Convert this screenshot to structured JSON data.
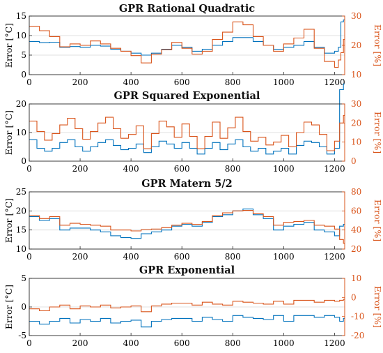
{
  "colors": {
    "left_axis": "#0072BD",
    "right_axis": "#D95319",
    "text_left": "#000000",
    "text_right": "#D95319",
    "grid": "#d9d9d9",
    "frame": "#262626"
  },
  "chart_data": [
    {
      "type": "line",
      "title": "GPR Rational Quadratic",
      "xlabel": "",
      "ylabel_left": "Error [°C]",
      "ylabel_right": "Error [%]",
      "xlim": [
        0,
        1240
      ],
      "ylim_left": [
        0,
        15
      ],
      "ylim_right": [
        10,
        30
      ],
      "x_ticks": [
        "0",
        "200",
        "400",
        "600",
        "800",
        "1000",
        "1200"
      ],
      "y_ticks_left": [
        "0",
        "5",
        "10",
        "15"
      ],
      "y_ticks_right": [
        "10",
        "20",
        "30"
      ],
      "grid": "horizontal",
      "series": [
        {
          "axis": "left",
          "color": "#0072BD",
          "x": [
            0,
            40,
            80,
            120,
            160,
            200,
            240,
            280,
            320,
            360,
            400,
            440,
            480,
            520,
            560,
            600,
            640,
            680,
            720,
            760,
            800,
            840,
            880,
            920,
            960,
            1000,
            1040,
            1080,
            1120,
            1160,
            1200,
            1215,
            1225,
            1235
          ],
          "y": [
            8.5,
            8.2,
            8.3,
            7.0,
            7.2,
            7.0,
            7.5,
            7.3,
            6.5,
            6.0,
            5.5,
            5.0,
            5.5,
            6.5,
            7.5,
            7.0,
            6.0,
            6.5,
            7.5,
            8.5,
            9.5,
            9.5,
            8.5,
            7.5,
            6.5,
            7.0,
            7.5,
            8.5,
            7.0,
            5.5,
            6.0,
            7.0,
            13.5,
            14.0
          ]
        },
        {
          "axis": "right",
          "color": "#D95319",
          "x": [
            0,
            40,
            80,
            120,
            160,
            200,
            240,
            280,
            320,
            360,
            400,
            440,
            480,
            520,
            560,
            600,
            640,
            680,
            720,
            760,
            800,
            840,
            880,
            920,
            960,
            1000,
            1040,
            1080,
            1120,
            1160,
            1200,
            1215,
            1225,
            1235
          ],
          "y": [
            26.5,
            25.0,
            23.0,
            19.5,
            20.5,
            20.0,
            21.5,
            20.5,
            19.0,
            18.0,
            16.5,
            14.0,
            17.0,
            18.5,
            21.0,
            19.0,
            17.0,
            18.0,
            22.0,
            24.5,
            28.0,
            27.0,
            23.0,
            20.0,
            18.0,
            20.5,
            22.5,
            25.5,
            19.0,
            14.5,
            12.5,
            15.0,
            17.5,
            22.0
          ]
        }
      ]
    },
    {
      "type": "line",
      "title": "GPR Squared Exponential",
      "xlabel": "",
      "ylabel_left": "Error [°C]",
      "ylabel_right": "Error [%]",
      "xlim": [
        0,
        1240
      ],
      "ylim_left": [
        0,
        20
      ],
      "ylim_right": [
        0,
        30
      ],
      "x_ticks": [
        "0",
        "200",
        "400",
        "600",
        "800",
        "1000",
        "1200"
      ],
      "y_ticks_left": [
        "0",
        "10",
        "20"
      ],
      "y_ticks_right": [
        "0",
        "10",
        "20",
        "30"
      ],
      "grid": "horizontal",
      "series": [
        {
          "axis": "left",
          "color": "#0072BD",
          "x": [
            0,
            30,
            60,
            90,
            120,
            150,
            180,
            210,
            240,
            270,
            300,
            330,
            360,
            390,
            420,
            450,
            480,
            510,
            540,
            570,
            600,
            630,
            660,
            690,
            720,
            750,
            780,
            810,
            840,
            870,
            900,
            930,
            960,
            990,
            1020,
            1050,
            1080,
            1110,
            1140,
            1170,
            1200,
            1220,
            1235
          ],
          "y": [
            7.5,
            4.5,
            3.5,
            4.5,
            6.5,
            7.5,
            5.0,
            3.5,
            5.0,
            6.5,
            7.5,
            5.5,
            4.0,
            4.5,
            6.0,
            3.0,
            5.0,
            7.0,
            6.0,
            4.5,
            6.5,
            4.5,
            2.5,
            4.5,
            6.5,
            4.0,
            6.0,
            7.5,
            5.0,
            3.5,
            4.5,
            2.5,
            3.5,
            4.5,
            2.5,
            5.5,
            7.0,
            6.5,
            5.0,
            2.5,
            4.5,
            25.0,
            27.0
          ]
        },
        {
          "axis": "right",
          "color": "#D95319",
          "x": [
            0,
            30,
            60,
            90,
            120,
            150,
            180,
            210,
            240,
            270,
            300,
            330,
            360,
            390,
            420,
            450,
            480,
            510,
            540,
            570,
            600,
            630,
            660,
            690,
            720,
            750,
            780,
            810,
            840,
            870,
            900,
            930,
            960,
            990,
            1020,
            1050,
            1080,
            1110,
            1140,
            1170,
            1200,
            1220,
            1235
          ],
          "y": [
            21.0,
            15.5,
            11.0,
            14.5,
            19.0,
            22.5,
            17.0,
            11.5,
            15.5,
            20.0,
            23.0,
            17.0,
            12.0,
            14.0,
            18.5,
            6.5,
            14.5,
            21.0,
            18.0,
            12.5,
            19.5,
            13.0,
            6.5,
            13.0,
            20.5,
            12.0,
            17.5,
            23.0,
            15.5,
            10.5,
            12.5,
            8.5,
            10.0,
            13.5,
            7.5,
            15.0,
            20.5,
            19.0,
            14.0,
            5.5,
            10.5,
            20.0,
            24.0
          ]
        }
      ]
    },
    {
      "type": "line",
      "title": "GPR Matern 5/2",
      "xlabel": "",
      "ylabel_left": "Error [°C]",
      "ylabel_right": "Error [%]",
      "xlim": [
        0,
        1240
      ],
      "ylim_left": [
        10,
        25
      ],
      "ylim_right": [
        20,
        80
      ],
      "x_ticks": [
        "0",
        "200",
        "400",
        "600",
        "800",
        "1000",
        "1200"
      ],
      "y_ticks_left": [
        "10",
        "15",
        "20",
        "25"
      ],
      "y_ticks_right": [
        "20",
        "40",
        "60",
        "80"
      ],
      "grid": "horizontal",
      "series": [
        {
          "axis": "left",
          "color": "#0072BD",
          "x": [
            0,
            40,
            80,
            120,
            160,
            200,
            240,
            280,
            320,
            360,
            400,
            440,
            480,
            520,
            560,
            600,
            640,
            680,
            720,
            760,
            800,
            840,
            880,
            920,
            960,
            1000,
            1040,
            1080,
            1120,
            1160,
            1200,
            1220,
            1235
          ],
          "y": [
            18.5,
            17.5,
            18.0,
            15.0,
            15.5,
            15.5,
            15.0,
            14.5,
            13.5,
            13.0,
            12.8,
            14.0,
            14.5,
            15.0,
            16.0,
            16.5,
            16.0,
            17.0,
            18.5,
            19.0,
            20.0,
            20.5,
            19.0,
            18.0,
            15.0,
            16.0,
            16.5,
            17.0,
            15.0,
            14.5,
            13.5,
            16.0,
            16.5
          ]
        },
        {
          "axis": "right",
          "color": "#D95319",
          "x": [
            0,
            40,
            80,
            120,
            160,
            200,
            240,
            280,
            320,
            360,
            400,
            440,
            480,
            520,
            560,
            600,
            640,
            680,
            720,
            760,
            800,
            840,
            880,
            920,
            960,
            1000,
            1040,
            1080,
            1120,
            1160,
            1200,
            1220,
            1235
          ],
          "y": [
            55.0,
            52.0,
            54.0,
            45.0,
            47.0,
            46.0,
            45.0,
            44.0,
            40.0,
            40.0,
            39.0,
            40.5,
            41.0,
            42.5,
            45.0,
            47.0,
            46.0,
            49.0,
            55.0,
            58.0,
            60.0,
            60.5,
            57.0,
            54.0,
            45.0,
            48.0,
            49.0,
            50.0,
            45.0,
            44.0,
            41.0,
            30.0,
            26.0
          ]
        }
      ]
    },
    {
      "type": "line",
      "title": "GPR Exponential",
      "xlabel": "",
      "ylabel_left": "Error [°C]",
      "ylabel_right": "Error [%]",
      "xlim": [
        0,
        1240
      ],
      "ylim_left": [
        -5,
        5
      ],
      "ylim_right": [
        -20,
        10
      ],
      "x_ticks": [
        "0",
        "200",
        "400",
        "600",
        "800",
        "1000",
        "1200"
      ],
      "y_ticks_left": [
        "-5",
        "0",
        "5"
      ],
      "y_ticks_right": [
        "-20",
        "-10",
        "0",
        "10"
      ],
      "grid": "horizontal",
      "series": [
        {
          "axis": "left",
          "color": "#0072BD",
          "x": [
            0,
            40,
            80,
            120,
            160,
            200,
            240,
            280,
            320,
            360,
            400,
            440,
            480,
            520,
            560,
            600,
            640,
            680,
            720,
            760,
            800,
            840,
            880,
            920,
            960,
            1000,
            1040,
            1080,
            1120,
            1160,
            1200,
            1220,
            1235
          ],
          "y": [
            -2.5,
            -3.0,
            -2.5,
            -2.0,
            -2.8,
            -2.2,
            -2.5,
            -2.0,
            -2.8,
            -2.5,
            -2.3,
            -3.5,
            -2.5,
            -2.2,
            -2.0,
            -2.0,
            -2.5,
            -1.8,
            -2.2,
            -2.5,
            -1.5,
            -1.8,
            -2.0,
            -2.2,
            -1.5,
            -2.5,
            -1.5,
            -1.5,
            -1.8,
            -1.5,
            -1.8,
            -2.5,
            -2.0
          ]
        },
        {
          "axis": "right",
          "color": "#D95319",
          "x": [
            0,
            40,
            80,
            120,
            160,
            200,
            240,
            280,
            320,
            360,
            400,
            440,
            480,
            520,
            560,
            600,
            640,
            680,
            720,
            760,
            800,
            840,
            880,
            920,
            960,
            1000,
            1040,
            1080,
            1120,
            1160,
            1200,
            1220,
            1235
          ],
          "y": [
            -6.0,
            -7.0,
            -5.0,
            -4.0,
            -6.0,
            -4.5,
            -5.0,
            -4.0,
            -5.5,
            -5.0,
            -4.5,
            -7.5,
            -4.5,
            -3.5,
            -3.0,
            -3.0,
            -4.0,
            -2.5,
            -3.5,
            -4.0,
            -2.0,
            -2.5,
            -3.0,
            -3.5,
            -2.0,
            -3.5,
            -1.5,
            -1.5,
            -2.5,
            -1.5,
            -2.0,
            -1.5,
            -1.0
          ]
        }
      ]
    }
  ]
}
